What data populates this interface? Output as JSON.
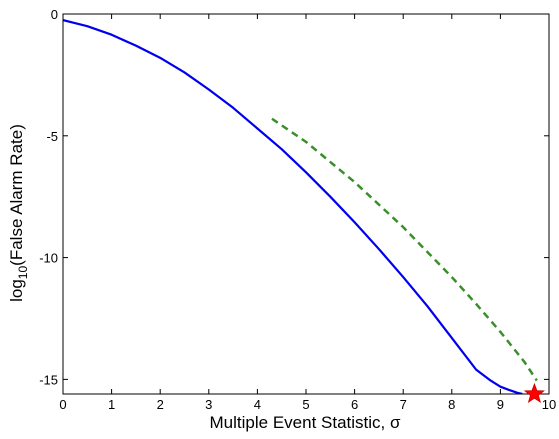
{
  "chart_data": {
    "type": "line",
    "title": "",
    "xlabel": "Multiple Event Statistic, σ",
    "ylabel": {
      "base": "log",
      "subscript": "10",
      "rest": "(False Alarm Rate)"
    },
    "xlim": [
      0,
      10
    ],
    "ylim": [
      -15.6,
      0
    ],
    "xticks": [
      0,
      1,
      2,
      3,
      4,
      5,
      6,
      7,
      8,
      9,
      10
    ],
    "yticks": [
      0,
      -5,
      -10,
      -15
    ],
    "grid": false,
    "legend": "none",
    "series": [
      {
        "style": "solid",
        "color": "#0000ee",
        "x": [
          0,
          0.5,
          1,
          1.5,
          2,
          2.5,
          3,
          3.5,
          4,
          4.5,
          5,
          5.5,
          6,
          6.5,
          7,
          7.5,
          8,
          8.5,
          8.8,
          9.0,
          9.2,
          9.35,
          9.45
        ],
        "y": [
          -0.25,
          -0.5,
          -0.85,
          -1.3,
          -1.8,
          -2.4,
          -3.1,
          -3.85,
          -4.7,
          -5.55,
          -6.5,
          -7.5,
          -8.55,
          -9.65,
          -10.8,
          -12.0,
          -13.3,
          -14.6,
          -15.05,
          -15.3,
          -15.45,
          -15.55,
          -15.6
        ]
      },
      {
        "style": "dashed",
        "color": "#3a8f2a",
        "x": [
          4.3,
          5,
          6,
          7,
          8,
          8.5,
          9,
          9.5,
          9.75
        ],
        "y": [
          -4.3,
          -5.25,
          -6.9,
          -8.75,
          -10.8,
          -11.9,
          -13.05,
          -14.3,
          -15.05
        ]
      }
    ],
    "markers": [
      {
        "shape": "star",
        "color": "#ff0000",
        "x": 9.7,
        "y": -15.6
      }
    ]
  }
}
